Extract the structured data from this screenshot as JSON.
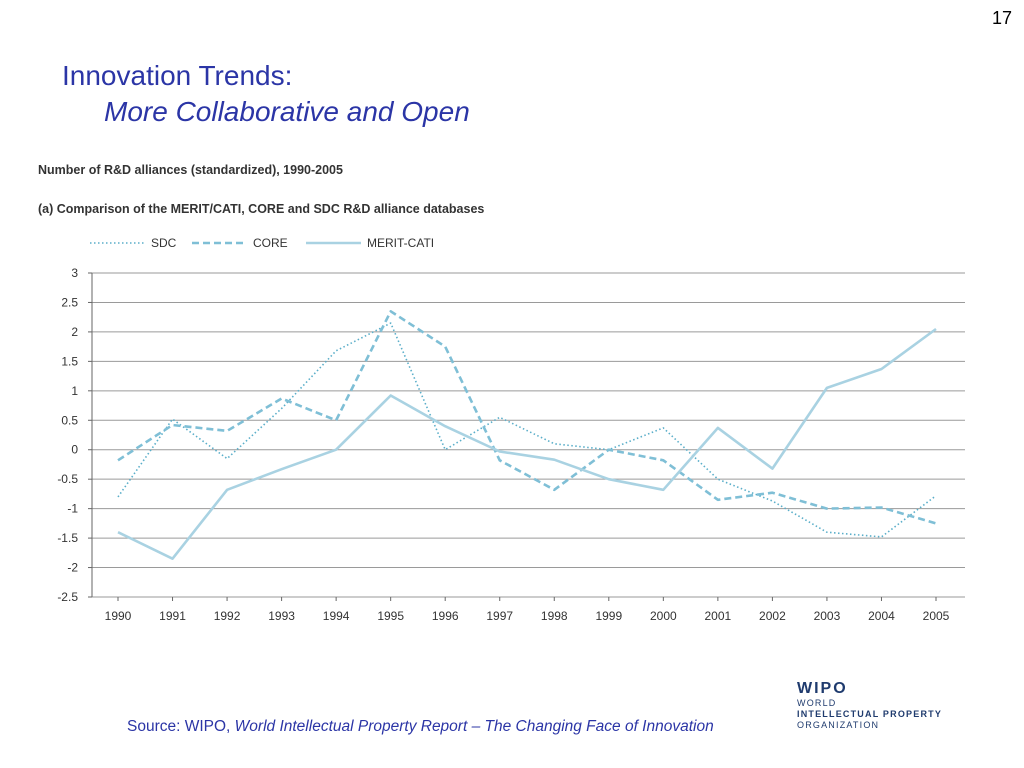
{
  "page_number": "17",
  "title": {
    "line1": "Innovation Trends:",
    "line2": "More Collaborative and Open"
  },
  "source": {
    "prefix": "Source: WIPO, ",
    "title": "World Intellectual Property Report – The Changing Face of Innovation"
  },
  "logo": {
    "mark": "WIPO",
    "line1": "WORLD",
    "line2": "INTELLECTUAL PROPERTY",
    "line3": "ORGANIZATION"
  },
  "chart_data": {
    "type": "line",
    "title": "Number of R&D alliances (standardized), 1990-2005",
    "subtitle": "(a) Comparison of the MERIT/CATI, CORE and SDC R&D alliance databases",
    "categories": [
      "1990",
      "1991",
      "1992",
      "1993",
      "1994",
      "1995",
      "1996",
      "1997",
      "1998",
      "1999",
      "2000",
      "2001",
      "2002",
      "2003",
      "2004",
      "2005"
    ],
    "ylim": [
      -2.5,
      3
    ],
    "yticks": [
      "3",
      "2.5",
      "2",
      "1.5",
      "1",
      "0.5",
      "0",
      "-0.5",
      "-1",
      "-1.5",
      "-2",
      "-2.5"
    ],
    "grid": true,
    "legend_position": "top-left",
    "series": [
      {
        "name": "SDC",
        "style": "dotted",
        "color": "#5aaec9",
        "values": [
          -0.8,
          0.52,
          -0.15,
          0.7,
          1.68,
          2.15,
          0.0,
          0.55,
          0.1,
          0.0,
          0.37,
          -0.5,
          -0.87,
          -1.4,
          -1.48,
          -0.78
        ]
      },
      {
        "name": "CORE",
        "style": "dashed",
        "color": "#7fbfd6",
        "values": [
          -0.18,
          0.42,
          0.32,
          0.87,
          0.5,
          2.35,
          1.75,
          -0.18,
          -0.68,
          0.0,
          -0.18,
          -0.85,
          -0.73,
          -1.0,
          -0.98,
          -1.25
        ]
      },
      {
        "name": "MERIT-CATI",
        "style": "solid",
        "color": "#a9d2e2",
        "values": [
          -1.4,
          -1.85,
          -0.68,
          -0.33,
          0.0,
          0.92,
          0.4,
          -0.03,
          -0.17,
          -0.5,
          -0.68,
          0.37,
          -0.32,
          1.05,
          1.37,
          2.05
        ]
      }
    ]
  }
}
